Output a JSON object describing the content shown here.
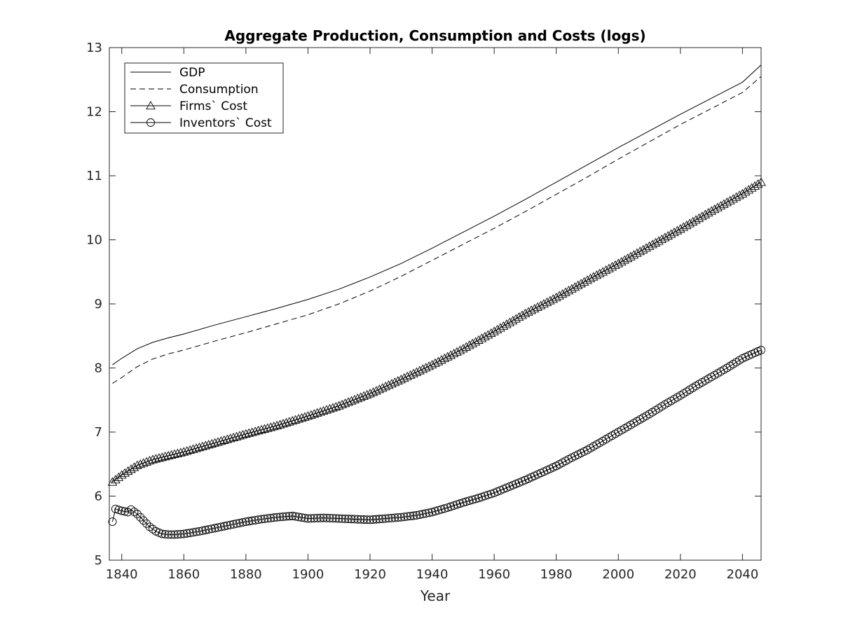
{
  "chart_data": {
    "type": "line",
    "title": "Aggregate Production, Consumption and Costs (logs)",
    "xlabel": "Year",
    "ylabel": "",
    "xlim": [
      1836,
      2046
    ],
    "ylim": [
      5,
      13
    ],
    "xticks": [
      1840,
      1860,
      1880,
      1900,
      1920,
      1940,
      1960,
      1980,
      2000,
      2020,
      2040
    ],
    "yticks": [
      5,
      6,
      7,
      8,
      9,
      10,
      11,
      12,
      13
    ],
    "grid": false,
    "legend_position": "top-left",
    "series": [
      {
        "name": "GDP",
        "style": "solid",
        "marker": "none",
        "x": [
          1837,
          1840,
          1845,
          1850,
          1855,
          1860,
          1870,
          1880,
          1890,
          1900,
          1910,
          1920,
          1930,
          1940,
          1950,
          1960,
          1970,
          1980,
          1990,
          2000,
          2010,
          2020,
          2030,
          2040,
          2046
        ],
        "y": [
          8.05,
          8.15,
          8.3,
          8.4,
          8.47,
          8.53,
          8.67,
          8.8,
          8.93,
          9.07,
          9.23,
          9.42,
          9.63,
          9.87,
          10.12,
          10.37,
          10.63,
          10.9,
          11.17,
          11.44,
          11.7,
          11.96,
          12.21,
          12.46,
          12.73
        ]
      },
      {
        "name": "Consumption",
        "style": "dashed",
        "marker": "none",
        "x": [
          1837,
          1840,
          1845,
          1850,
          1855,
          1860,
          1870,
          1880,
          1890,
          1900,
          1910,
          1920,
          1930,
          1940,
          1950,
          1960,
          1970,
          1980,
          1990,
          2000,
          2010,
          2020,
          2030,
          2040,
          2046
        ],
        "y": [
          7.76,
          7.85,
          8.02,
          8.14,
          8.22,
          8.28,
          8.42,
          8.55,
          8.69,
          8.83,
          9.0,
          9.2,
          9.43,
          9.68,
          9.93,
          10.18,
          10.44,
          10.71,
          10.98,
          11.26,
          11.53,
          11.8,
          12.05,
          12.3,
          12.55
        ]
      },
      {
        "name": "Firms` Cost",
        "style": "solid",
        "marker": "triangle",
        "x": [
          1837,
          1840,
          1845,
          1850,
          1855,
          1860,
          1870,
          1880,
          1890,
          1900,
          1910,
          1920,
          1930,
          1940,
          1950,
          1960,
          1970,
          1980,
          1990,
          2000,
          2010,
          2020,
          2030,
          2040,
          2046
        ],
        "y": [
          6.22,
          6.33,
          6.48,
          6.57,
          6.63,
          6.69,
          6.83,
          6.97,
          7.1,
          7.25,
          7.41,
          7.6,
          7.82,
          8.05,
          8.3,
          8.57,
          8.85,
          9.1,
          9.37,
          9.63,
          9.9,
          10.17,
          10.45,
          10.72,
          10.9
        ]
      },
      {
        "name": "Inventors` Cost",
        "style": "solid",
        "marker": "circle",
        "x": [
          1837,
          1838,
          1840,
          1842,
          1843,
          1845,
          1847,
          1849,
          1851,
          1853,
          1855,
          1857,
          1860,
          1865,
          1870,
          1875,
          1880,
          1885,
          1890,
          1895,
          1900,
          1905,
          1910,
          1915,
          1920,
          1925,
          1930,
          1935,
          1940,
          1945,
          1950,
          1955,
          1960,
          1965,
          1970,
          1975,
          1980,
          1985,
          1990,
          1995,
          2000,
          2005,
          2010,
          2015,
          2020,
          2025,
          2030,
          2035,
          2040,
          2046
        ],
        "y": [
          5.6,
          5.8,
          5.77,
          5.75,
          5.79,
          5.72,
          5.62,
          5.52,
          5.45,
          5.41,
          5.4,
          5.4,
          5.41,
          5.45,
          5.5,
          5.55,
          5.6,
          5.64,
          5.67,
          5.69,
          5.65,
          5.66,
          5.65,
          5.64,
          5.63,
          5.65,
          5.67,
          5.7,
          5.75,
          5.82,
          5.9,
          5.97,
          6.05,
          6.15,
          6.25,
          6.36,
          6.47,
          6.6,
          6.72,
          6.86,
          7.0,
          7.14,
          7.28,
          7.43,
          7.57,
          7.72,
          7.86,
          8.0,
          8.15,
          8.28
        ]
      }
    ]
  }
}
